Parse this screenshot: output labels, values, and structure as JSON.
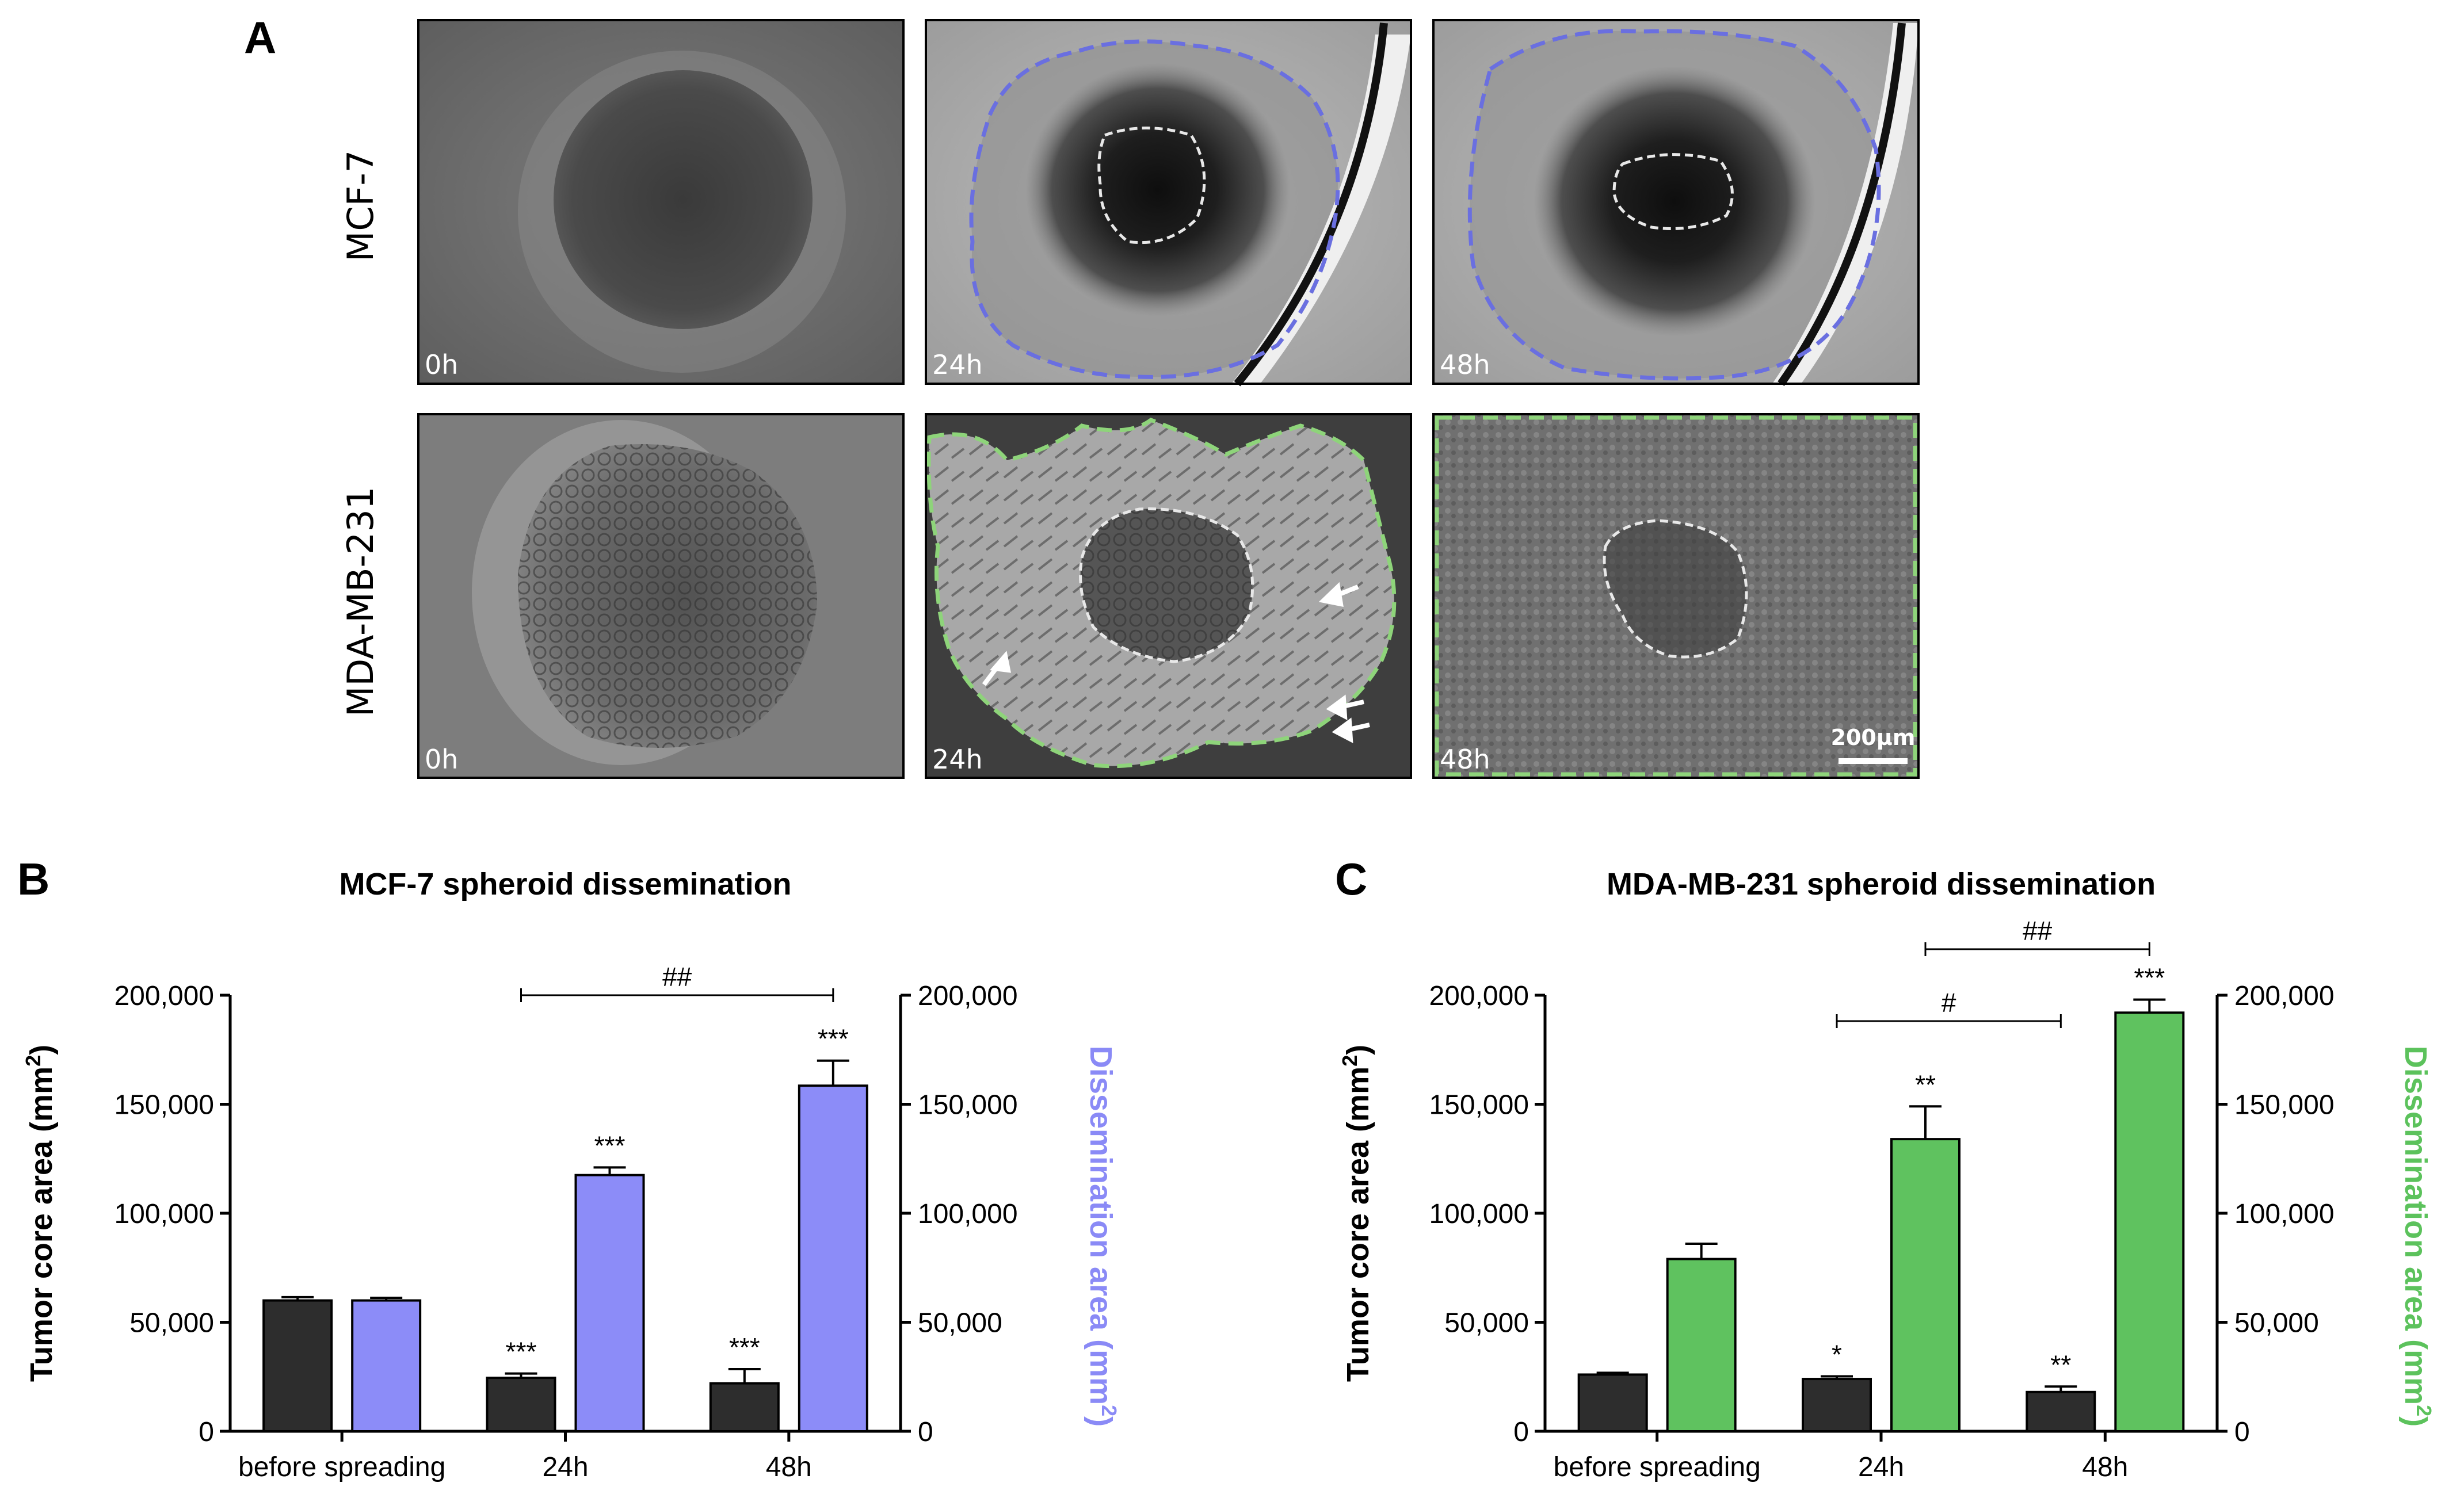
{
  "panels": {
    "A": "A",
    "B": "B",
    "C": "C"
  },
  "micrographs": {
    "row_labels": [
      "MCF-7",
      "MDA-MB-231"
    ],
    "time_labels": [
      "0h",
      "24h",
      "48h"
    ],
    "scale_bar": "200μm",
    "outline_colors": {
      "mcf7": "#6a6fe0",
      "mda": "#8ed47a",
      "core": "#e8e8e8"
    }
  },
  "chart_data": [
    {
      "type": "bar",
      "title": "MCF-7 spheroid dissemination",
      "categories": [
        "before spreading",
        "24h",
        "48h"
      ],
      "y_ticks": [
        "0",
        "50,000",
        "100,000",
        "150,000",
        "200,000"
      ],
      "ylim": [
        0,
        200000
      ],
      "ylabel_left": "Tumor core area (mm",
      "ylabel_right": "Dissemination area (mm",
      "superscript": "2",
      "series": [
        {
          "name": "Tumor core area",
          "color": "#2d2d2d",
          "values": [
            60000,
            24500,
            22000
          ],
          "errors": [
            1500,
            2000,
            6500
          ],
          "sig": [
            "",
            "***",
            "***"
          ]
        },
        {
          "name": "Dissemination area",
          "color": "#8c8cf8",
          "values": [
            60000,
            117500,
            158500
          ],
          "errors": [
            1200,
            3500,
            11500
          ],
          "sig": [
            "",
            "***",
            "***"
          ]
        }
      ],
      "brackets": [
        {
          "from": "24h",
          "to": "48h",
          "label": "##"
        }
      ],
      "right_axis_color": "#8a8af6"
    },
    {
      "type": "bar",
      "title": "MDA-MB-231 spheroid dissemination",
      "categories": [
        "before spreading",
        "24h",
        "48h"
      ],
      "y_ticks": [
        "0",
        "50,000",
        "100,000",
        "150,000",
        "200,000"
      ],
      "ylim": [
        0,
        200000
      ],
      "ylabel_left": "Tumor core area (mm",
      "ylabel_right": "Dissemination area (mm",
      "superscript": "2",
      "series": [
        {
          "name": "Tumor core area",
          "color": "#2d2d2d",
          "values": [
            26000,
            24000,
            18000
          ],
          "errors": [
            800,
            1200,
            2500
          ],
          "sig": [
            "",
            "*",
            "**"
          ]
        },
        {
          "name": "Dissemination area",
          "color": "#5fc25f",
          "values": [
            79000,
            134000,
            192000
          ],
          "errors": [
            7000,
            15000,
            6000
          ],
          "sig": [
            "",
            "**",
            "***"
          ]
        }
      ],
      "brackets": [
        {
          "from": "24h",
          "to": "48h",
          "label": "#",
          "level": 0
        },
        {
          "from": "24h",
          "to": "48h",
          "label": "##",
          "level": 1
        }
      ],
      "right_axis_color": "#5cc25c"
    }
  ]
}
